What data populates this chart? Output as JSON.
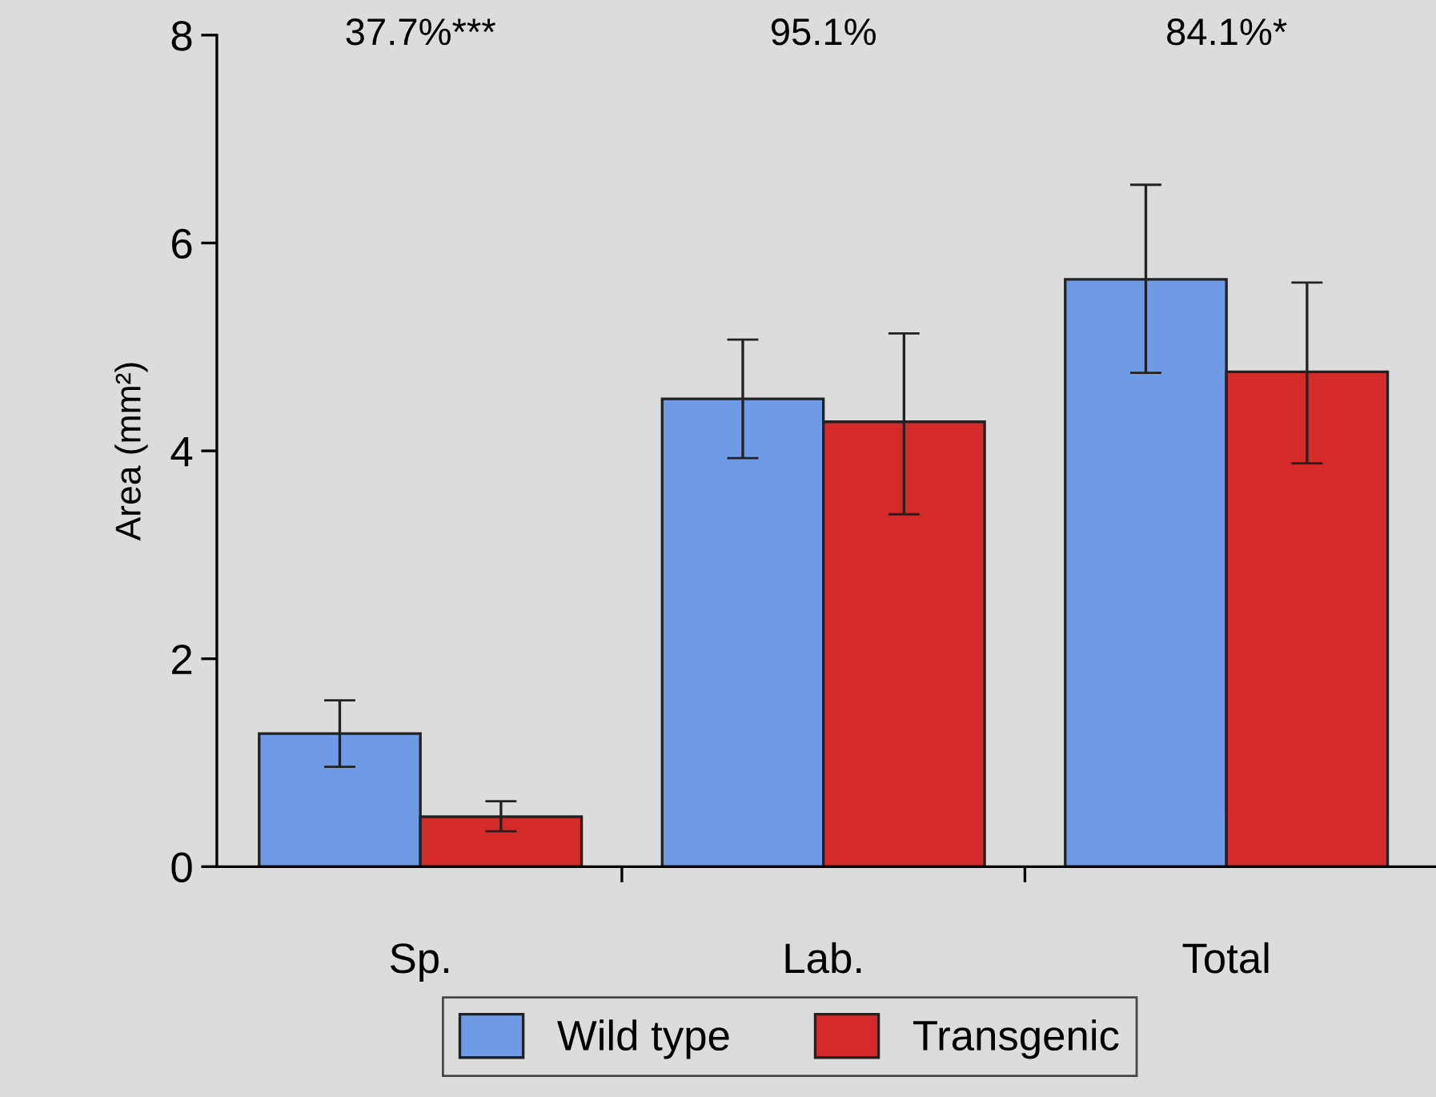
{
  "chart_data": {
    "type": "bar",
    "ylabel": "Area (mm²)",
    "categories": [
      "Sp.",
      "Lab.",
      "Total"
    ],
    "series": [
      {
        "name": "Wild type",
        "color": "#6f9be6",
        "values": [
          1.28,
          4.5,
          5.65
        ],
        "errors": [
          [
            0.96,
            1.6
          ],
          [
            3.93,
            5.07
          ],
          [
            4.75,
            6.56
          ]
        ]
      },
      {
        "name": "Transgenic",
        "color": "#d42a2a",
        "values": [
          0.48,
          4.28,
          4.76
        ],
        "errors": [
          [
            0.34,
            0.63
          ],
          [
            3.39,
            5.13
          ],
          [
            3.88,
            5.62
          ]
        ]
      }
    ],
    "annotations": [
      "37.7%***",
      "95.1%",
      "84.1%*"
    ],
    "ylim": [
      0,
      8
    ],
    "yticks": [
      0,
      2,
      4,
      6,
      8
    ],
    "grid": false,
    "legend": "bottom"
  }
}
